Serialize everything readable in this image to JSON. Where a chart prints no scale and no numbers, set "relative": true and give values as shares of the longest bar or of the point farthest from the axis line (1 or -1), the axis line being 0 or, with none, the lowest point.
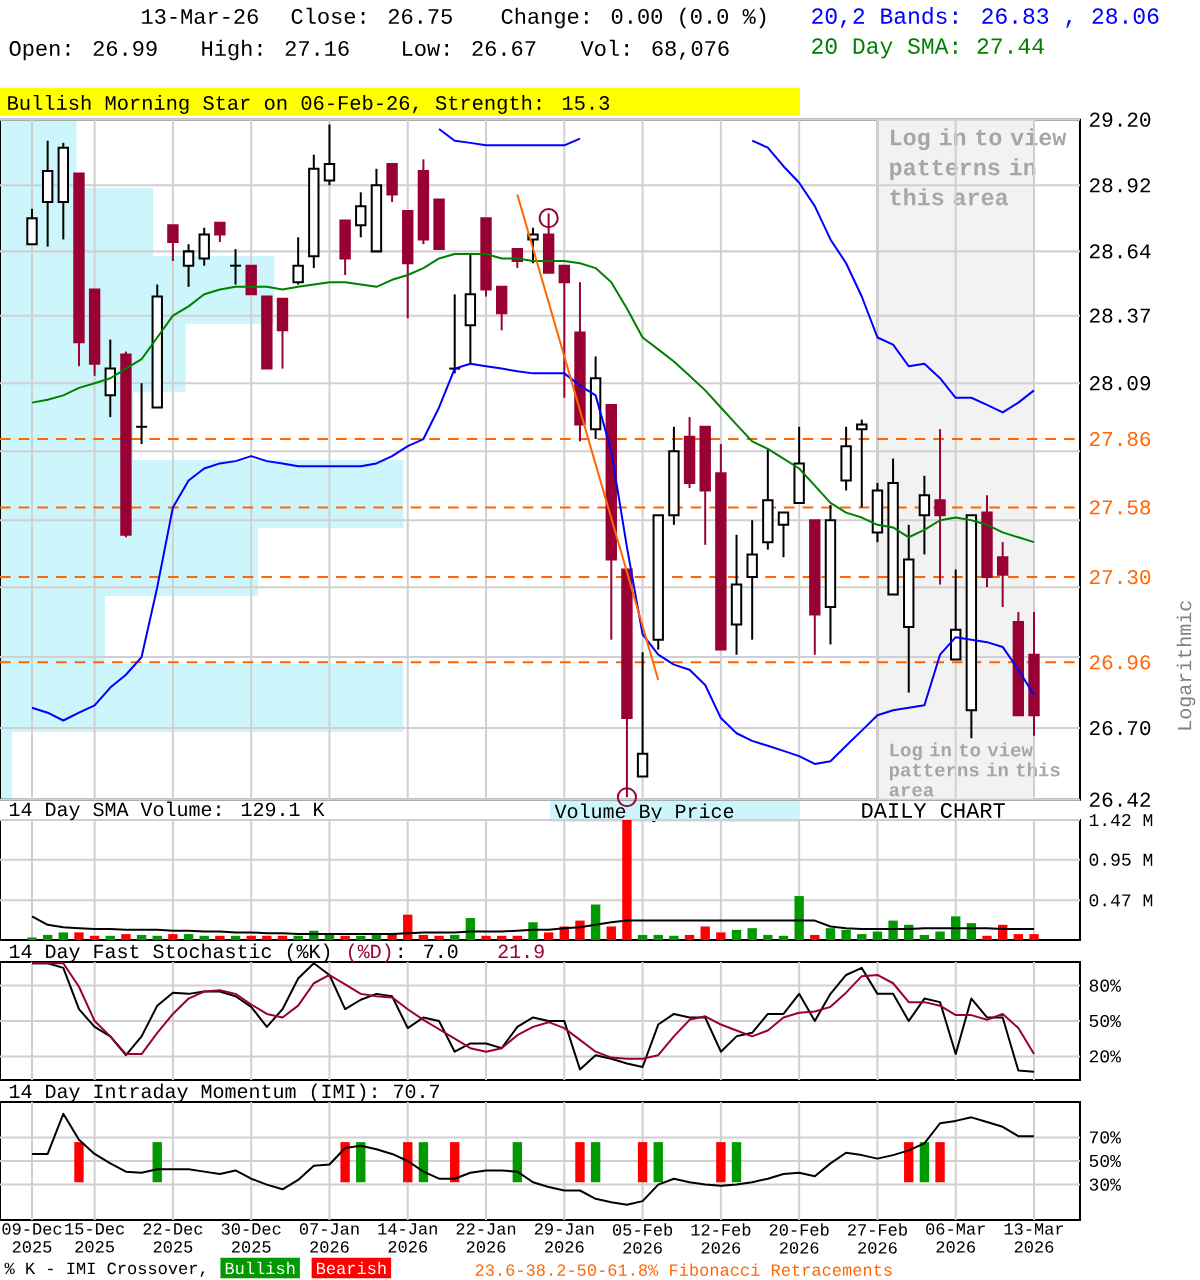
{
  "chart_data": [
    {
      "type": "candlestick",
      "categories": [
        "09-Dec 2025",
        null,
        null,
        null,
        "15-Dec 2025",
        null,
        null,
        null,
        null,
        "22-Dec 2025",
        null,
        null,
        null,
        null,
        "30-Dec 2025",
        null,
        null,
        null,
        null,
        "07-Jan 2026",
        null,
        null,
        null,
        null,
        "14-Jan 2026",
        null,
        null,
        null,
        null,
        "22-Jan 2026",
        null,
        null,
        null,
        null,
        "29-Jan 2026",
        null,
        null,
        null,
        null,
        "05-Feb 2026",
        null,
        null,
        null,
        null,
        "12-Feb 2026",
        null,
        null,
        null,
        null,
        "20-Feb 2026",
        null,
        null,
        null,
        null,
        "27-Feb 2026",
        null,
        null,
        null,
        null,
        "06-Mar 2026",
        null,
        null,
        null,
        null,
        "13-Mar 2026"
      ],
      "ohlc": [
        [
          28.67,
          28.82,
          28.67,
          28.78
        ],
        [
          28.85,
          29.11,
          28.66,
          28.98
        ],
        [
          28.85,
          29.1,
          28.69,
          29.08
        ],
        [
          28.97,
          28.97,
          28.16,
          28.26
        ],
        [
          28.48,
          28.48,
          28.12,
          28.17
        ],
        [
          28.04,
          28.27,
          27.95,
          28.15
        ],
        [
          28.21,
          28.22,
          27.46,
          27.47
        ],
        [
          27.91,
          28.09,
          27.84,
          27.91
        ],
        [
          27.99,
          28.5,
          27.99,
          28.45
        ],
        [
          28.75,
          28.75,
          28.6,
          28.68
        ],
        [
          28.58,
          28.67,
          28.49,
          28.64
        ],
        [
          28.61,
          28.74,
          28.58,
          28.71
        ],
        [
          28.76,
          28.76,
          28.68,
          28.71
        ],
        [
          28.58,
          28.65,
          28.5,
          28.58
        ],
        [
          28.58,
          28.58,
          28.46,
          28.46
        ],
        [
          28.45,
          28.45,
          28.15,
          28.15
        ],
        [
          28.44,
          28.44,
          28.15,
          28.31
        ],
        [
          28.51,
          28.7,
          28.5,
          28.58
        ],
        [
          28.62,
          29.05,
          28.57,
          28.99
        ],
        [
          28.94,
          29.18,
          28.92,
          29.01
        ],
        [
          28.77,
          28.77,
          28.54,
          28.61
        ],
        [
          28.75,
          28.89,
          28.7,
          28.83
        ],
        [
          28.64,
          28.99,
          28.64,
          28.92
        ],
        [
          29.01,
          29.01,
          28.85,
          28.88
        ],
        [
          28.81,
          28.81,
          28.36,
          28.59
        ],
        [
          28.98,
          29.03,
          28.67,
          28.69
        ],
        [
          28.86,
          28.86,
          28.65,
          28.65
        ],
        [
          28.15,
          28.46,
          28.13,
          28.15
        ],
        [
          28.33,
          28.63,
          28.17,
          28.46
        ],
        [
          28.78,
          28.78,
          28.45,
          28.48
        ],
        [
          28.49,
          28.49,
          28.31,
          28.38
        ],
        [
          28.65,
          28.65,
          28.57,
          28.6
        ],
        [
          28.69,
          28.74,
          28.59,
          28.71
        ],
        [
          28.71,
          28.8,
          28.55,
          28.55
        ],
        [
          28.58,
          28.58,
          28.03,
          28.51
        ],
        [
          28.3,
          28.51,
          27.85,
          27.92
        ],
        [
          27.9,
          28.2,
          27.86,
          28.11
        ],
        [
          28.0,
          28.0,
          27.05,
          27.37
        ],
        [
          27.33,
          27.33,
          26.43,
          26.74
        ],
        [
          26.51,
          27.0,
          26.51,
          26.6
        ],
        [
          27.05,
          27.55,
          27.01,
          27.55
        ],
        [
          27.55,
          27.91,
          27.51,
          27.81
        ],
        [
          27.87,
          27.95,
          27.66,
          27.68
        ],
        [
          27.91,
          27.91,
          27.43,
          27.65
        ],
        [
          27.72,
          27.84,
          27.01,
          27.01
        ],
        [
          27.11,
          27.47,
          26.99,
          27.27
        ],
        [
          27.3,
          27.53,
          27.05,
          27.39
        ],
        [
          27.44,
          27.82,
          27.41,
          27.61
        ],
        [
          27.51,
          27.56,
          27.38,
          27.56
        ],
        [
          27.6,
          27.91,
          27.6,
          27.76
        ],
        [
          27.53,
          27.53,
          26.99,
          27.15
        ],
        [
          27.18,
          27.59,
          27.03,
          27.53
        ],
        [
          27.69,
          27.91,
          27.65,
          27.83
        ],
        [
          27.9,
          27.94,
          27.58,
          27.92
        ],
        [
          27.48,
          27.68,
          27.44,
          27.65
        ],
        [
          27.23,
          27.78,
          27.23,
          27.68
        ],
        [
          27.1,
          27.51,
          26.84,
          27.37
        ],
        [
          27.55,
          27.71,
          27.39,
          27.63
        ],
        [
          27.61,
          27.9,
          27.27,
          27.55
        ],
        [
          26.97,
          27.33,
          26.97,
          27.09
        ],
        [
          26.77,
          27.55,
          26.66,
          27.55
        ],
        [
          27.56,
          27.63,
          27.26,
          27.3
        ],
        [
          27.38,
          27.44,
          27.18,
          27.31
        ],
        [
          27.12,
          27.16,
          26.75,
          26.75
        ],
        [
          26.99,
          27.16,
          26.67,
          26.75
        ]
      ],
      "colors": [
        "#ffffff",
        "#ffffff",
        "#ffffff",
        "#990033",
        "#990033",
        "#ffffff",
        "#990033",
        "#000000",
        "#ffffff",
        "#990033",
        "#ffffff",
        "#ffffff",
        "#990033",
        "#000000",
        "#990033",
        "#990033",
        "#990033",
        "#ffffff",
        "#ffffff",
        "#ffffff",
        "#990033",
        "#ffffff",
        "#ffffff",
        "#990033",
        "#990033",
        "#990033",
        "#990033",
        "#000000",
        "#ffffff",
        "#990033",
        "#990033",
        "#990033",
        "#ffffff",
        "#990033",
        "#990033",
        "#990033",
        "#ffffff",
        "#990033",
        "#990033",
        "#ffffff",
        "#ffffff",
        "#ffffff",
        "#990033",
        "#990033",
        "#990033",
        "#ffffff",
        "#ffffff",
        "#ffffff",
        "#ffffff",
        "#ffffff",
        "#990033",
        "#ffffff",
        "#ffffff",
        "#ffffff",
        "#ffffff",
        "#ffffff",
        "#ffffff",
        "#ffffff",
        "#990033",
        "#ffffff",
        "#ffffff",
        "#990033",
        "#990033",
        "#990033",
        "#990033"
      ],
      "log": "y",
      "ylim": [
        26.42,
        29.2
      ],
      "yticks": [
        26.42,
        {
          "value": 26.7,
          "label": "26.70"
        },
        {
          "value": 26.98,
          "label": null
        },
        {
          "value": 27.26,
          "label": null
        },
        {
          "value": 27.53,
          "label": null
        },
        {
          "value": 27.81,
          "label": null
        },
        28.09,
        28.37,
        28.64,
        28.92,
        {
          "value": 29.2,
          "label": "29.20"
        }
      ],
      "tick_labels": "y",
      "grid": true,
      "ylabel": "Logarithmic",
      "legend": "top right",
      "ref_lines": [
        {
          "axis": "y",
          "value": 27.86,
          "label": "27.86",
          "color": "#ff6600",
          "line_style": "dashed"
        },
        {
          "axis": "y",
          "value": 27.58,
          "label": "27.58",
          "color": "#ff6600",
          "line_style": "dashed"
        },
        {
          "axis": "y",
          "value": 27.3,
          "label": "27.30",
          "color": "#ff6600",
          "line_style": "dashed"
        },
        {
          "axis": "y",
          "value": 26.96,
          "label": "26.96",
          "color": "#ff6600",
          "line_style": "dashed"
        }
      ],
      "bands": [
        {
          "axis": "x",
          "from": "27-Feb 2026",
          "to": "13-Mar 2026",
          "label": "Log in to view patterns in this area",
          "color": "#f2f2f2"
        }
      ],
      "annotations": [
        "13-Mar-26",
        "Close: 26.75",
        "Change: 0.00 (0.0 %)",
        "Open: 26.99",
        "High: 27.16",
        "Low: 26.67",
        "Vol: 68,076",
        "Bullish Morning Star on 06-Feb-26, Strength: 15.3",
        "DAILY CHART",
        "23.6-38.2-50-61.8% Fibonacci Retracements"
      ],
      "series": [
        {
          "name": "20,2 Bands: 26.83 , 28.06",
          "type": "line",
          "color": "#0000ff",
          "values": [
            null,
            null,
            null,
            null,
            null,
            null,
            null,
            null,
            null,
            null,
            null,
            null,
            null,
            null,
            null,
            null,
            null,
            null,
            null,
            null,
            null,
            null,
            null,
            null,
            null,
            null,
            29.16,
            29.11,
            29.1,
            29.09,
            29.09,
            29.09,
            29.09,
            29.09,
            29.09,
            29.12,
            null,
            null,
            null,
            null,
            null,
            null,
            null,
            null,
            null,
            null,
            29.11,
            29.08,
            29.0,
            28.93,
            28.83,
            28.69,
            28.59,
            28.45,
            28.28,
            28.25,
            28.16,
            28.17,
            28.11,
            28.03,
            28.03,
            28.0,
            27.97,
            28.01,
            28.06
          ]
        },
        {
          "type": "line",
          "color": "#0000ff",
          "values": [
            26.78,
            26.76,
            26.73,
            26.76,
            26.79,
            26.86,
            26.91,
            26.98,
            27.26,
            27.58,
            27.69,
            27.74,
            27.76,
            27.77,
            27.79,
            27.77,
            27.76,
            27.75,
            27.75,
            27.75,
            27.75,
            27.75,
            27.76,
            27.79,
            27.83,
            27.86,
            27.99,
            28.15,
            28.17,
            28.16,
            28.15,
            28.14,
            28.13,
            28.13,
            28.13,
            28.08,
            28.04,
            27.81,
            27.42,
            27.07,
            26.99,
            26.95,
            26.93,
            26.87,
            26.74,
            26.68,
            26.65,
            26.63,
            26.61,
            26.59,
            26.56,
            26.57,
            26.63,
            26.69,
            26.75,
            26.77,
            26.78,
            26.79,
            26.99,
            27.06,
            27.05,
            27.04,
            27.02,
            26.93,
            26.83
          ]
        },
        {
          "name": "20 Day SMA: 27.44",
          "type": "line",
          "color": "#008000",
          "values": [
            28.01,
            28.02,
            28.04,
            28.07,
            28.09,
            28.11,
            28.15,
            28.19,
            28.28,
            28.37,
            28.41,
            28.46,
            28.48,
            28.49,
            28.49,
            28.49,
            28.48,
            28.49,
            28.5,
            28.51,
            28.51,
            28.5,
            28.49,
            28.52,
            28.54,
            28.57,
            28.61,
            28.63,
            28.63,
            28.63,
            28.61,
            28.61,
            28.6,
            28.6,
            28.6,
            28.59,
            28.57,
            28.51,
            28.4,
            28.28,
            28.23,
            28.18,
            28.12,
            28.06,
            27.99,
            27.92,
            27.85,
            27.82,
            27.78,
            27.74,
            27.67,
            27.6,
            27.56,
            27.54,
            27.51,
            27.5,
            27.46,
            27.49,
            27.53,
            27.54,
            27.53,
            27.51,
            27.48,
            27.46,
            27.44
          ]
        },
        {
          "type": "scatter",
          "color": "#990033",
          "marker": "circle",
          "values": [
            null,
            null,
            null,
            null,
            null,
            null,
            null,
            null,
            null,
            null,
            null,
            null,
            null,
            null,
            null,
            null,
            null,
            null,
            null,
            null,
            null,
            null,
            null,
            null,
            null,
            null,
            null,
            null,
            null,
            null,
            null,
            null,
            null,
            28.78,
            null,
            null,
            null,
            null,
            26.43,
            null,
            null,
            null,
            null,
            null,
            null,
            null,
            null,
            null,
            null,
            null,
            null,
            null,
            null,
            null,
            null,
            null,
            null,
            null,
            null,
            null,
            null,
            null,
            null,
            null,
            null
          ]
        },
        {
          "type": "line",
          "color": "#ff6600",
          "values": [
            null,
            null,
            null,
            null,
            null,
            null,
            null,
            null,
            null,
            null,
            null,
            null,
            null,
            null,
            null,
            null,
            null,
            null,
            null,
            null,
            null,
            null,
            null,
            null,
            null,
            null,
            null,
            null,
            null,
            null,
            null,
            28.88,
            null,
            null,
            null,
            null,
            null,
            null,
            null,
            null,
            26.89,
            null,
            null,
            null,
            null,
            null,
            null,
            null,
            null,
            null,
            null,
            null,
            null,
            null,
            null,
            null,
            null,
            null,
            null,
            null,
            null,
            null,
            null,
            null,
            null
          ]
        }
      ]
    },
    {
      "type": "bar",
      "orientation": "horizontal",
      "relative": true,
      "legend": "bottom",
      "categories": [
        null,
        null,
        null,
        null,
        null,
        null,
        null,
        null,
        null,
        null
      ],
      "series": [
        {
          "name": "Volume By Price",
          "color": "#ccf5fc",
          "values": [
            0.19,
            0.38,
            0.68,
            0.46,
            0.33,
            1,
            0.64,
            0.26,
            1,
            0.03
          ]
        }
      ]
    },
    {
      "type": "bar",
      "title": "14 Day SMA Volume: 129.1 K",
      "categories": [
        "09-Dec 2025",
        null,
        null,
        null,
        "15-Dec 2025",
        null,
        null,
        null,
        null,
        "22-Dec 2025",
        null,
        null,
        null,
        null,
        "30-Dec 2025",
        null,
        null,
        null,
        null,
        "07-Jan 2026",
        null,
        null,
        null,
        null,
        "14-Jan 2026",
        null,
        null,
        null,
        null,
        "22-Jan 2026",
        null,
        null,
        null,
        null,
        "29-Jan 2026",
        null,
        null,
        null,
        null,
        "05-Feb 2026",
        null,
        null,
        null,
        null,
        "12-Feb 2026",
        null,
        null,
        null,
        null,
        "20-Feb 2026",
        null,
        null,
        null,
        null,
        "27-Feb 2026",
        null,
        null,
        null,
        null,
        "06-Mar 2026",
        null,
        null,
        null,
        null,
        "13-Mar 2026"
      ],
      "tick_labels": "y",
      "ylim": [
        0,
        1.42
      ],
      "yticks": [
        {
          "value": 0.47,
          "label": "0.47 M"
        },
        {
          "value": 0.95,
          "label": "0.95 M"
        },
        {
          "value": 1.42,
          "label": "1.42 M"
        }
      ],
      "grid": true,
      "series": [
        {
          "colors": [
            "#009900",
            "#009900",
            "#009900",
            "#ff0000",
            "#ff0000",
            "#009900",
            "#ff0000",
            "#009900",
            "#009900",
            "#ff0000",
            "#009900",
            "#009900",
            "#ff0000",
            "#009900",
            "#ff0000",
            "#ff0000",
            "#ff0000",
            "#009900",
            "#009900",
            "#009900",
            "#ff0000",
            "#009900",
            "#009900",
            "#ff0000",
            "#ff0000",
            "#ff0000",
            "#ff0000",
            "#009900",
            "#009900",
            "#ff0000",
            "#ff0000",
            "#ff0000",
            "#009900",
            "#ff0000",
            "#ff0000",
            "#ff0000",
            "#009900",
            "#ff0000",
            "#ff0000",
            "#009900",
            "#009900",
            "#009900",
            "#ff0000",
            "#ff0000",
            "#ff0000",
            "#009900",
            "#009900",
            "#009900",
            "#009900",
            "#009900",
            "#ff0000",
            "#009900",
            "#009900",
            "#009900",
            "#009900",
            "#009900",
            "#009900",
            "#009900",
            "#009900",
            "#009900",
            "#009900",
            "#ff0000",
            "#ff0000",
            "#ff0000",
            "#ff0000"
          ],
          "values": [
            0.03,
            0.06,
            0.09,
            0.09,
            0.05,
            0.05,
            0.07,
            0.06,
            0.05,
            0.07,
            0.07,
            0.05,
            0.05,
            0.05,
            0.05,
            0.05,
            0.05,
            0.05,
            0.11,
            0.06,
            0.05,
            0.05,
            0.06,
            0.07,
            0.3,
            0.06,
            0.05,
            0.06,
            0.26,
            0.05,
            0.05,
            0.05,
            0.21,
            0.09,
            0.16,
            0.23,
            0.42,
            0.16,
            1.42,
            0.06,
            0.06,
            0.05,
            0.06,
            0.16,
            0.09,
            0.12,
            0.14,
            0.06,
            0.05,
            0.52,
            0.06,
            0.14,
            0.12,
            0.07,
            0.1,
            0.23,
            0.18,
            0.06,
            0.1,
            0.28,
            0.2,
            0.05,
            0.18,
            0.07,
            0.07
          ]
        },
        {
          "type": "line",
          "color": "#000000",
          "values": [
            0.28,
            0.18,
            0.15,
            0.14,
            0.13,
            0.13,
            0.12,
            0.12,
            0.12,
            0.11,
            0.11,
            0.1,
            0.1,
            0.09,
            0.09,
            0.08,
            0.08,
            0.07,
            0.07,
            0.07,
            0.07,
            0.07,
            0.07,
            0.07,
            0.08,
            0.09,
            0.09,
            0.09,
            0.1,
            0.1,
            0.1,
            0.11,
            0.12,
            0.12,
            0.14,
            0.15,
            0.18,
            0.21,
            0.23,
            0.23,
            0.23,
            0.23,
            0.23,
            0.23,
            0.23,
            0.23,
            0.23,
            0.23,
            0.23,
            0.23,
            0.23,
            0.16,
            0.14,
            0.13,
            0.13,
            0.13,
            0.13,
            0.14,
            0.14,
            0.14,
            0.14,
            0.14,
            0.13,
            0.13,
            0.13
          ]
        }
      ]
    },
    {
      "type": "line",
      "title": "14 Day Fast Stochastic (%K)",
      "categories": [
        "09-Dec 2025",
        null,
        null,
        null,
        "15-Dec 2025",
        null,
        null,
        null,
        null,
        "22-Dec 2025",
        null,
        null,
        null,
        null,
        "30-Dec 2025",
        null,
        null,
        null,
        null,
        "07-Jan 2026",
        null,
        null,
        null,
        null,
        "14-Jan 2026",
        null,
        null,
        null,
        null,
        "22-Jan 2026",
        null,
        null,
        null,
        null,
        "29-Jan 2026",
        null,
        null,
        null,
        null,
        "05-Feb 2026",
        null,
        null,
        null,
        null,
        "12-Feb 2026",
        null,
        null,
        null,
        null,
        "20-Feb 2026",
        null,
        null,
        null,
        null,
        "27-Feb 2026",
        null,
        null,
        null,
        null,
        "06-Mar 2026",
        null,
        null,
        null,
        null,
        "13-Mar 2026"
      ],
      "tick_labels": "y",
      "ylim": [
        0,
        100
      ],
      "yticks": [
        {
          "value": 20,
          "label": "20%"
        },
        {
          "value": 50,
          "label": "50%"
        },
        {
          "value": 80,
          "label": "80%"
        }
      ],
      "grid": true,
      "annotations": [
        ": 7.0",
        "21.9"
      ],
      "series": [
        {
          "color": "#000000",
          "values": [
            99,
            99,
            95,
            60,
            45,
            37,
            21,
            37,
            63,
            74,
            73,
            75,
            75,
            71,
            62,
            45,
            60,
            86,
            99,
            89,
            60,
            68,
            73,
            71,
            44,
            53,
            50,
            24,
            31,
            31,
            27,
            45,
            53,
            50,
            50,
            9,
            21,
            18,
            14,
            11,
            47,
            56,
            53,
            53,
            24,
            37,
            40,
            56,
            56,
            73,
            50,
            73,
            89,
            95,
            73,
            73,
            50,
            69,
            66,
            22,
            69,
            53,
            53,
            8,
            7
          ]
        },
        {
          "name": "(%D)",
          "color": "#990033",
          "values": [
            99,
            99,
            99,
            79,
            50,
            37,
            22,
            22,
            40,
            56,
            69,
            75,
            76,
            73,
            64,
            56,
            53,
            63,
            82,
            89,
            81,
            73,
            71,
            70,
            60,
            51,
            43,
            35,
            27,
            24,
            27,
            38,
            45,
            49,
            44,
            34,
            24,
            19,
            18,
            18,
            21,
            37,
            51,
            54,
            47,
            42,
            37,
            42,
            53,
            57,
            58,
            62,
            74,
            88,
            89,
            82,
            66,
            66,
            63,
            55,
            55,
            51,
            56,
            44,
            22
          ]
        }
      ]
    },
    {
      "type": "line",
      "title": "14 Day Intraday Momentum (IMI): 70.7",
      "categories": [
        "09-Dec 2025",
        null,
        null,
        null,
        "15-Dec 2025",
        null,
        null,
        null,
        null,
        "22-Dec 2025",
        null,
        null,
        null,
        null,
        "30-Dec 2025",
        null,
        null,
        null,
        null,
        "07-Jan 2026",
        null,
        null,
        null,
        null,
        "14-Jan 2026",
        null,
        null,
        null,
        null,
        "22-Jan 2026",
        null,
        null,
        null,
        null,
        "29-Jan 2026",
        null,
        null,
        null,
        null,
        "05-Feb 2026",
        null,
        null,
        null,
        null,
        "12-Feb 2026",
        null,
        null,
        null,
        null,
        "20-Feb 2026",
        null,
        null,
        null,
        null,
        "27-Feb 2026",
        null,
        null,
        null,
        null,
        "06-Mar 2026",
        null,
        null,
        null,
        null,
        "13-Mar 2026"
      ],
      "ylim": [
        0,
        100
      ],
      "yticks": [
        {
          "value": 30,
          "label": "30%"
        },
        {
          "value": 50,
          "label": "50%"
        },
        {
          "value": 70,
          "label": "70%"
        }
      ],
      "grid": true,
      "legend": "bottom",
      "legend_title": "% K - IMI Crossover,",
      "series": [
        {
          "color": "#000000",
          "values": [
            56,
            56,
            90,
            68,
            56,
            48,
            41,
            40,
            43,
            43,
            43,
            41,
            39,
            42,
            35,
            30,
            26,
            34,
            46,
            47,
            61,
            63,
            60,
            56,
            50,
            41,
            35,
            35,
            40,
            42,
            42,
            41,
            32,
            28,
            25,
            25,
            18,
            15,
            13,
            16,
            30,
            35,
            32,
            30,
            29,
            30,
            32,
            35,
            39,
            40,
            37,
            48,
            57,
            55,
            52,
            55,
            59,
            65,
            82,
            84,
            87,
            83,
            79,
            71,
            71
          ]
        },
        {
          "name": "Bullish",
          "type": "bar",
          "color": "#009900",
          "base": [
            null,
            null,
            null,
            null,
            null,
            null,
            null,
            null,
            32,
            null,
            null,
            null,
            null,
            null,
            null,
            null,
            null,
            null,
            null,
            null,
            null,
            32,
            null,
            null,
            null,
            32,
            null,
            null,
            null,
            null,
            null,
            32,
            null,
            null,
            null,
            null,
            32,
            null,
            null,
            null,
            32,
            null,
            null,
            null,
            null,
            32,
            null,
            null,
            null,
            null,
            null,
            null,
            null,
            null,
            null,
            null,
            null,
            32,
            null,
            null,
            null,
            null,
            null,
            null,
            null
          ],
          "values": [
            null,
            null,
            null,
            null,
            null,
            null,
            null,
            null,
            34,
            null,
            null,
            null,
            null,
            null,
            null,
            null,
            null,
            null,
            null,
            null,
            null,
            34,
            null,
            null,
            null,
            34,
            null,
            null,
            null,
            null,
            null,
            34,
            null,
            null,
            null,
            null,
            34,
            null,
            null,
            null,
            34,
            null,
            null,
            null,
            null,
            34,
            null,
            null,
            null,
            null,
            null,
            null,
            null,
            null,
            null,
            null,
            null,
            34,
            null,
            null,
            null,
            null,
            null,
            null,
            null
          ]
        },
        {
          "name": "Bearish",
          "type": "bar",
          "color": "#ff0000",
          "base": [
            null,
            null,
            null,
            32,
            null,
            null,
            null,
            null,
            null,
            null,
            null,
            null,
            null,
            null,
            null,
            null,
            null,
            null,
            null,
            null,
            32,
            null,
            null,
            null,
            32,
            null,
            null,
            32,
            null,
            null,
            null,
            null,
            null,
            null,
            null,
            32,
            null,
            null,
            null,
            32,
            null,
            null,
            null,
            null,
            32,
            null,
            null,
            null,
            null,
            null,
            null,
            null,
            null,
            null,
            null,
            null,
            32,
            null,
            32,
            null,
            null,
            null,
            null,
            null,
            null
          ],
          "values": [
            null,
            null,
            null,
            34,
            null,
            null,
            null,
            null,
            null,
            null,
            null,
            null,
            null,
            null,
            null,
            null,
            null,
            null,
            null,
            null,
            34,
            null,
            null,
            null,
            34,
            null,
            null,
            34,
            null,
            null,
            null,
            null,
            null,
            null,
            null,
            34,
            null,
            null,
            null,
            34,
            null,
            null,
            null,
            null,
            34,
            null,
            null,
            null,
            null,
            null,
            null,
            null,
            null,
            null,
            null,
            null,
            34,
            null,
            34,
            null,
            null,
            null,
            null,
            null,
            null
          ]
        }
      ]
    }
  ]
}
